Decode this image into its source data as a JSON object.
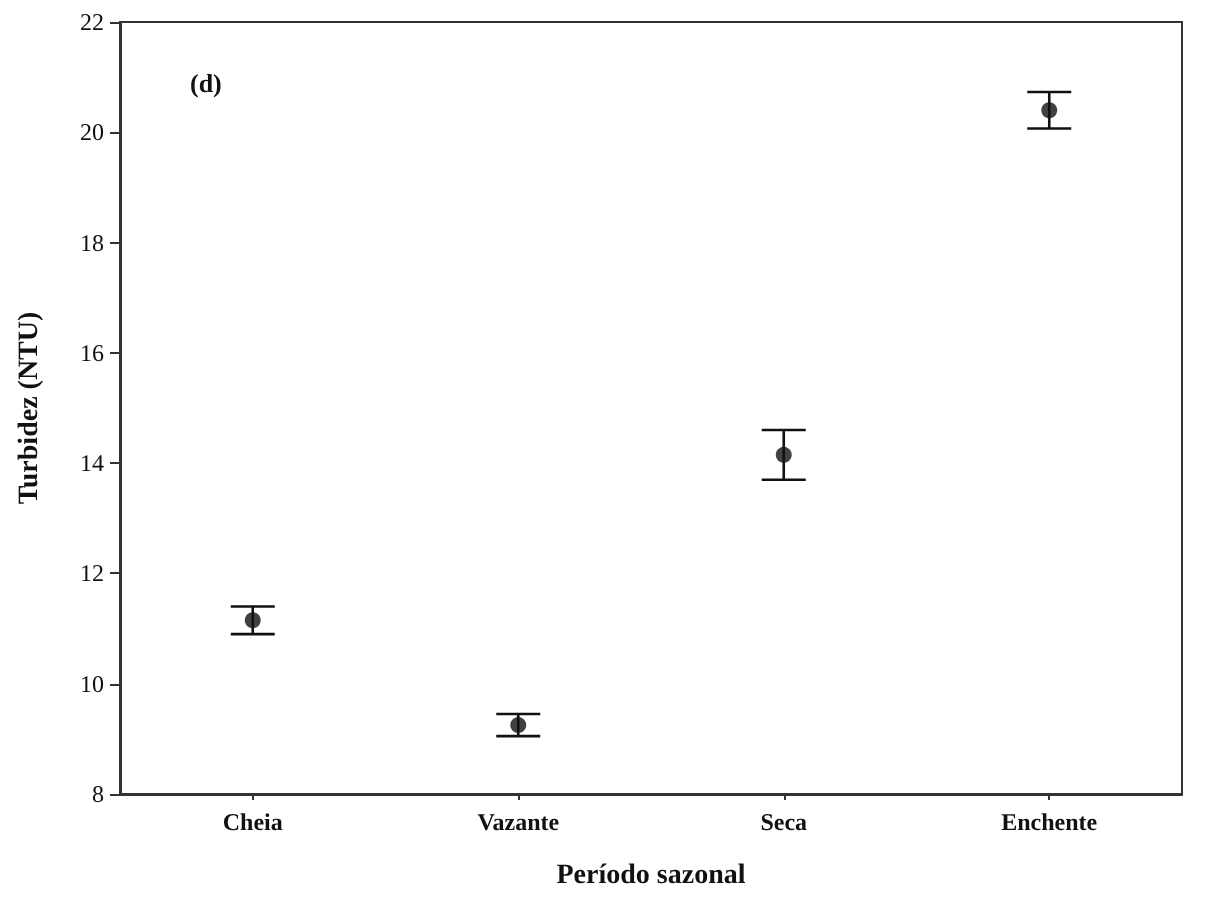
{
  "chart_data": {
    "type": "scatter",
    "xlabel": "Período sazonal",
    "ylabel": "Turbidez (NTU)",
    "annotations": [
      "(d)"
    ],
    "categories": [
      "Cheia",
      "Vazante",
      "Seca",
      "Enchente"
    ],
    "series": [
      {
        "color": "#111111",
        "values": [
          11.15,
          9.25,
          14.15,
          20.4
        ],
        "errors": [
          0.25,
          0.2,
          0.45,
          0.33
        ]
      }
    ],
    "ylim": [
      8,
      22
    ],
    "yticks": [
      8,
      10,
      12,
      14,
      16,
      18,
      20,
      22
    ],
    "grid": false,
    "marker": "circle"
  }
}
